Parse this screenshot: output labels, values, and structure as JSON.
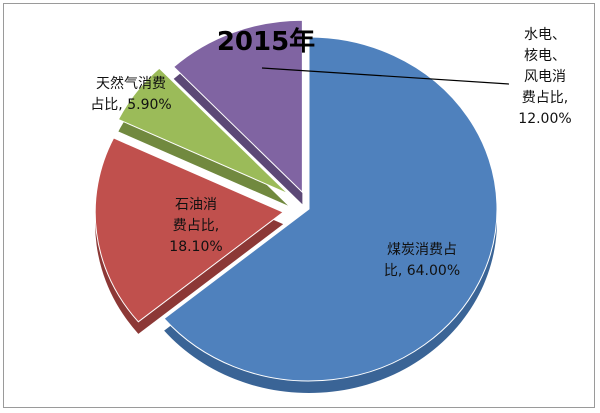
{
  "chart_data": {
    "type": "pie",
    "title": "2015年",
    "slices": [
      {
        "label": "煤炭消费占比, 64.00%",
        "label_lines": [
          "煤炭消费占",
          "比, 64.00%"
        ],
        "value": 64.0,
        "color": "#4f81bd",
        "side": "#3a6496",
        "exploded": false
      },
      {
        "label": "石油消费占比, 18.10%",
        "label_lines": [
          "石油消",
          "费占比,",
          "18.10%"
        ],
        "value": 18.1,
        "color": "#c0504d",
        "side": "#8c3836",
        "exploded": true
      },
      {
        "label": "天然气消费占比, 5.90%",
        "label_lines": [
          "天然气消费",
          "占比, 5.90%"
        ],
        "value": 5.9,
        "color": "#9bbb59",
        "side": "#71893f",
        "exploded": true
      },
      {
        "label": "水电、核电、风电消费占比, 12.00%",
        "label_lines": [
          "水电、",
          "核电、",
          "风电消",
          "费占比,",
          "12.00%"
        ],
        "value": 12.0,
        "color": "#8064a2",
        "side": "#5c4876",
        "exploded": true
      }
    ]
  }
}
